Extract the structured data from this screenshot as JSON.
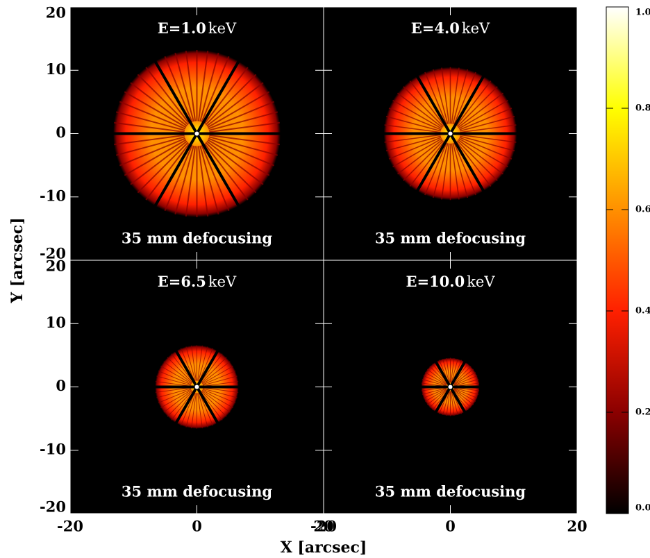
{
  "figure": {
    "xlabel": "X [arcsec]",
    "ylabel": "Y [arcsec]"
  },
  "chart_data": [
    {
      "type": "image",
      "title": "E=1.0",
      "title_unit": "keV",
      "annotation": "35 mm defocusing",
      "xlim": [
        -20,
        20
      ],
      "ylim": [
        -20,
        20
      ],
      "yticks": [
        20,
        10,
        0,
        -10,
        -20
      ]
    },
    {
      "type": "image",
      "title": "E=4.0",
      "title_unit": "keV",
      "annotation": "35 mm defocusing",
      "xlim": [
        -20,
        20
      ],
      "ylim": [
        -20,
        20
      ]
    },
    {
      "type": "image",
      "title": "E=6.5",
      "title_unit": "keV",
      "annotation": "35 mm defocusing",
      "xlim": [
        -20,
        20
      ],
      "ylim": [
        -20,
        20
      ],
      "xticks": [
        -20,
        0,
        20
      ],
      "yticks": [
        20,
        10,
        0,
        -10,
        -20
      ]
    },
    {
      "type": "image",
      "title": "E=10.0",
      "title_unit": "keV",
      "annotation": "35 mm defocusing",
      "xlim": [
        -20,
        20
      ],
      "ylim": [
        -20,
        20
      ],
      "xticks": [
        -20,
        0,
        20
      ]
    },
    {
      "type": "colorbar",
      "ylim": [
        0,
        1
      ],
      "yticks": [
        {
          "value": 0,
          "label": "0.0"
        },
        0.2,
        0.4,
        0.6,
        0.8,
        {
          "value": 1,
          "label": "1.0"
        }
      ],
      "colormap": [
        "#000000",
        "#8b0000",
        "#ff2000",
        "#ff9000",
        "#ffff00",
        "#ffffff"
      ]
    }
  ]
}
